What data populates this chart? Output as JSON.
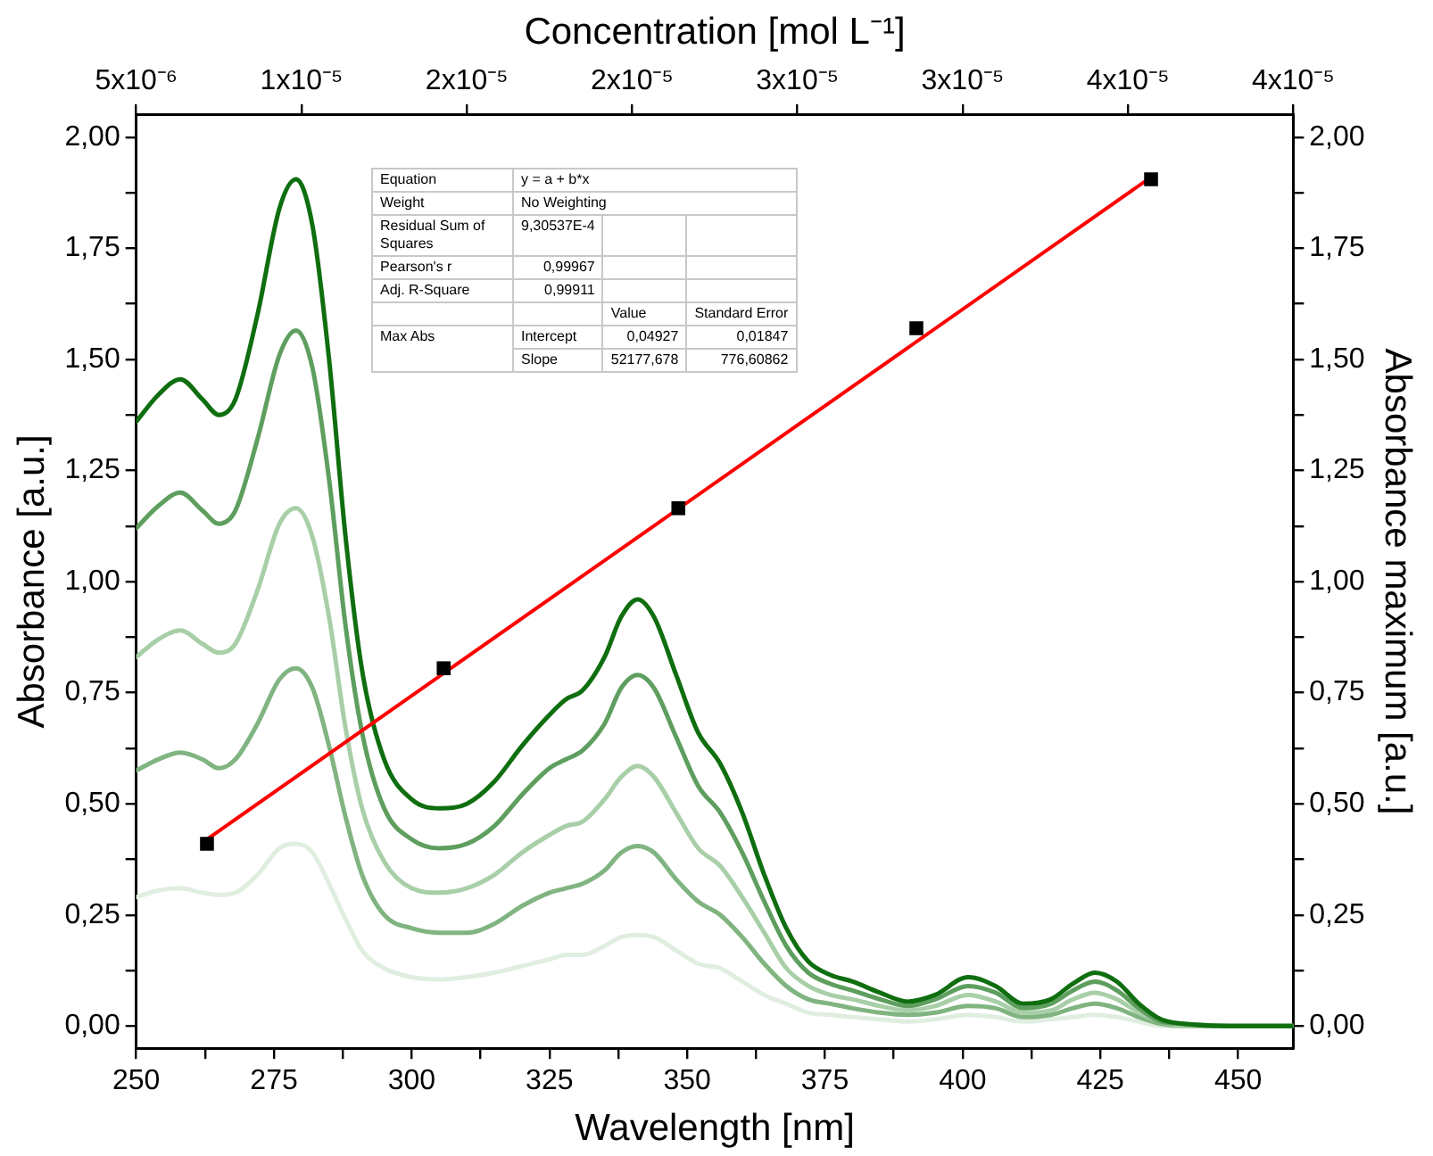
{
  "chart_data": {
    "type": "line",
    "xlabel": "Wavelength [nm]",
    "ylabel": "Absorbance [a.u.]",
    "y2label": "Absorbance maximum [a.u.]",
    "x2label": "Concentration [mol L⁻¹]",
    "x": [
      250,
      254,
      258,
      262,
      265,
      268,
      272,
      276,
      279,
      282,
      285,
      288,
      291,
      295,
      300,
      305,
      310,
      315,
      320,
      325,
      328,
      331,
      335,
      338,
      341,
      344,
      348,
      352,
      356,
      360,
      364,
      368,
      372,
      376,
      380,
      385,
      390,
      395,
      401,
      406,
      411,
      416,
      420,
      424,
      428,
      432,
      436,
      440,
      450,
      460
    ],
    "series": [
      {
        "color": "#e0eee0",
        "values": [
          0.29,
          0.305,
          0.31,
          0.3,
          0.295,
          0.3,
          0.34,
          0.4,
          0.41,
          0.39,
          0.32,
          0.24,
          0.17,
          0.13,
          0.11,
          0.105,
          0.11,
          0.12,
          0.135,
          0.15,
          0.16,
          0.16,
          0.18,
          0.2,
          0.205,
          0.2,
          0.17,
          0.14,
          0.13,
          0.1,
          0.07,
          0.05,
          0.03,
          0.025,
          0.02,
          0.015,
          0.01,
          0.015,
          0.025,
          0.02,
          0.01,
          0.015,
          0.02,
          0.025,
          0.02,
          0.01,
          0,
          0,
          0,
          0
        ]
      },
      {
        "color": "#80b480",
        "values": [
          0.575,
          0.6,
          0.615,
          0.6,
          0.58,
          0.6,
          0.68,
          0.78,
          0.805,
          0.76,
          0.63,
          0.47,
          0.34,
          0.25,
          0.22,
          0.21,
          0.21,
          0.23,
          0.27,
          0.3,
          0.31,
          0.32,
          0.35,
          0.39,
          0.405,
          0.39,
          0.33,
          0.28,
          0.25,
          0.2,
          0.14,
          0.09,
          0.06,
          0.05,
          0.04,
          0.03,
          0.025,
          0.03,
          0.045,
          0.04,
          0.02,
          0.025,
          0.04,
          0.05,
          0.04,
          0.02,
          0.005,
          0,
          0,
          0
        ]
      },
      {
        "color": "#a8cfa8",
        "values": [
          0.83,
          0.87,
          0.89,
          0.86,
          0.84,
          0.86,
          0.98,
          1.13,
          1.165,
          1.1,
          0.92,
          0.67,
          0.49,
          0.37,
          0.31,
          0.3,
          0.31,
          0.34,
          0.39,
          0.43,
          0.45,
          0.46,
          0.51,
          0.56,
          0.585,
          0.56,
          0.48,
          0.4,
          0.36,
          0.29,
          0.21,
          0.13,
          0.09,
          0.07,
          0.06,
          0.045,
          0.035,
          0.045,
          0.07,
          0.055,
          0.03,
          0.035,
          0.06,
          0.075,
          0.06,
          0.03,
          0.01,
          0,
          0,
          0
        ]
      },
      {
        "color": "#5e9e5e",
        "values": [
          1.12,
          1.17,
          1.2,
          1.16,
          1.13,
          1.16,
          1.32,
          1.51,
          1.565,
          1.48,
          1.23,
          0.9,
          0.66,
          0.49,
          0.42,
          0.4,
          0.41,
          0.45,
          0.52,
          0.58,
          0.6,
          0.62,
          0.68,
          0.76,
          0.79,
          0.76,
          0.65,
          0.54,
          0.48,
          0.39,
          0.28,
          0.18,
          0.12,
          0.095,
          0.08,
          0.06,
          0.045,
          0.06,
          0.09,
          0.075,
          0.04,
          0.05,
          0.08,
          0.1,
          0.08,
          0.04,
          0.01,
          0.005,
          0,
          0
        ]
      },
      {
        "color": "#0f6e0f",
        "values": [
          1.36,
          1.42,
          1.455,
          1.41,
          1.375,
          1.41,
          1.6,
          1.84,
          1.905,
          1.8,
          1.5,
          1.1,
          0.8,
          0.6,
          0.51,
          0.49,
          0.5,
          0.55,
          0.63,
          0.7,
          0.735,
          0.755,
          0.83,
          0.92,
          0.96,
          0.92,
          0.79,
          0.66,
          0.59,
          0.48,
          0.34,
          0.22,
          0.145,
          0.115,
          0.1,
          0.075,
          0.055,
          0.07,
          0.11,
          0.09,
          0.05,
          0.06,
          0.095,
          0.12,
          0.1,
          0.05,
          0.015,
          0.005,
          0,
          0
        ]
      },
      {
        "type": "line",
        "axis": "x2",
        "color": "#ff0000",
        "marker": "none",
        "x": [
          7.14e-06,
          3.57e-05
        ],
        "values": [
          0.42,
          1.91
        ]
      },
      {
        "type": "scatter",
        "axis": "x2",
        "color": "#000000",
        "marker": "square",
        "x": [
          7.14e-06,
          1.43e-05,
          2.14e-05,
          2.86e-05,
          3.57e-05
        ],
        "values": [
          0.41,
          0.805,
          1.165,
          1.57,
          1.905
        ]
      }
    ],
    "xlim": [
      250,
      460
    ],
    "xticks": [
      250,
      {
        "value": 262.5,
        "label": null
      },
      275,
      {
        "value": 287.5,
        "label": null
      },
      300,
      {
        "value": 312.5,
        "label": null
      },
      325,
      {
        "value": 337.5,
        "label": null
      },
      350,
      {
        "value": 362.5,
        "label": null
      },
      375,
      {
        "value": 387.5,
        "label": null
      },
      400,
      {
        "value": 412.5,
        "label": null
      },
      425,
      {
        "value": 437.5,
        "label": null
      },
      450
    ],
    "x2lim": [
      5e-06,
      4e-05
    ],
    "x2ticks": [
      {
        "value": 5e-06,
        "label": "5x10⁻⁶"
      },
      {
        "value": 1e-05,
        "label": "1x10⁻⁵"
      },
      {
        "value": 1.5e-05,
        "label": "2x10⁻⁵"
      },
      {
        "value": 2e-05,
        "label": "2x10⁻⁵"
      },
      {
        "value": 2.5e-05,
        "label": "3x10⁻⁵"
      },
      {
        "value": 3e-05,
        "label": "3x10⁻⁵"
      },
      {
        "value": 3.5e-05,
        "label": "4x10⁻⁵"
      },
      {
        "value": 4e-05,
        "label": "4x10⁻⁵"
      }
    ],
    "ylim": [
      -0.05,
      2.05
    ],
    "yticks": [
      {
        "value": 0,
        "label": "0,00"
      },
      {
        "value": 0.125,
        "label": null
      },
      {
        "value": 0.25,
        "label": "0,25"
      },
      {
        "value": 0.375,
        "label": null
      },
      {
        "value": 0.5,
        "label": "0,50"
      },
      {
        "value": 0.625,
        "label": null
      },
      {
        "value": 0.75,
        "label": "0,75"
      },
      {
        "value": 0.875,
        "label": null
      },
      {
        "value": 1,
        "label": "1,00"
      },
      {
        "value": 1.125,
        "label": null
      },
      {
        "value": 1.25,
        "label": "1,25"
      },
      {
        "value": 1.375,
        "label": null
      },
      {
        "value": 1.5,
        "label": "1,50"
      },
      {
        "value": 1.625,
        "label": null
      },
      {
        "value": 1.75,
        "label": "1,75"
      },
      {
        "value": 1.875,
        "label": null
      },
      {
        "value": 2,
        "label": "2,00"
      }
    ],
    "y2lim": [
      -0.05,
      2.05
    ],
    "y2ticks": [
      {
        "value": 0,
        "label": "0,00"
      },
      {
        "value": 0.125,
        "label": null
      },
      {
        "value": 0.25,
        "label": "0,25"
      },
      {
        "value": 0.375,
        "label": null
      },
      {
        "value": 0.5,
        "label": "0,50"
      },
      {
        "value": 0.625,
        "label": null
      },
      {
        "value": 0.75,
        "label": "0,75"
      },
      {
        "value": 0.875,
        "label": null
      },
      {
        "value": 1,
        "label": "1,00"
      },
      {
        "value": 1.125,
        "label": null
      },
      {
        "value": 1.25,
        "label": "1,25"
      },
      {
        "value": 1.375,
        "label": null
      },
      {
        "value": 1.5,
        "label": "1,50"
      },
      {
        "value": 1.625,
        "label": null
      },
      {
        "value": 1.75,
        "label": "1,75"
      },
      {
        "value": 1.875,
        "label": null
      },
      {
        "value": 2,
        "label": "2,00"
      }
    ],
    "grid": false,
    "legend": false,
    "marker": "none",
    "line_style": "solid",
    "annotations": [
      "Equation",
      "y = a + b*x",
      "Weight",
      "No Weighting",
      "Residual Sum of Squares",
      "9,30537E-4",
      "Pearson's r",
      "0,99967",
      "Adj. R-Square",
      "0,99911",
      "Value",
      "Standard Error",
      "Max Abs",
      "Intercept",
      "0,04927",
      "0,01847",
      "Slope",
      "52177,678",
      "776,60862"
    ]
  }
}
